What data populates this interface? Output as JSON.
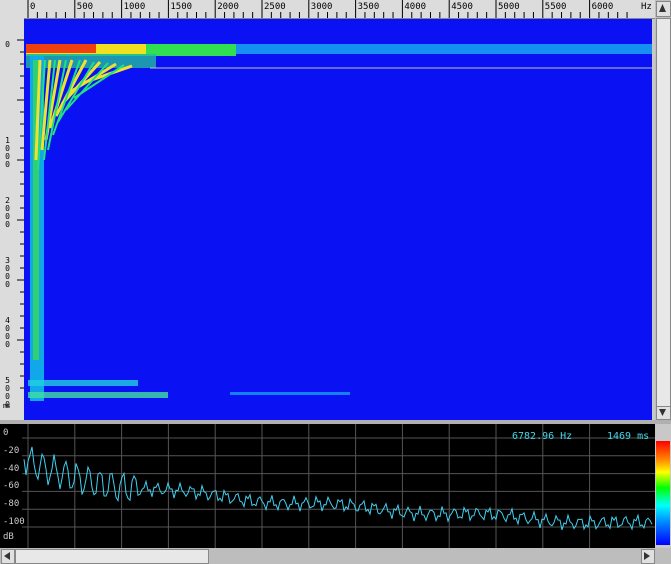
{
  "top_ruler": {
    "labels": [
      "0",
      "500",
      "1000",
      "1500",
      "2000",
      "2500",
      "3000",
      "3500",
      "4000",
      "4500",
      "5000",
      "5500",
      "6000"
    ],
    "unit": "Hz"
  },
  "left_ruler": {
    "labels": [
      "0",
      "1000",
      "2000",
      "3000",
      "4000",
      "5000"
    ],
    "unit": "ms"
  },
  "spectrum": {
    "y_labels": [
      "0",
      "-20",
      "-40",
      "-60",
      "-80",
      "-100"
    ],
    "unit": "dB",
    "frequency_readout": "6782.96 Hz",
    "time_readout": "1469 ms"
  }
}
